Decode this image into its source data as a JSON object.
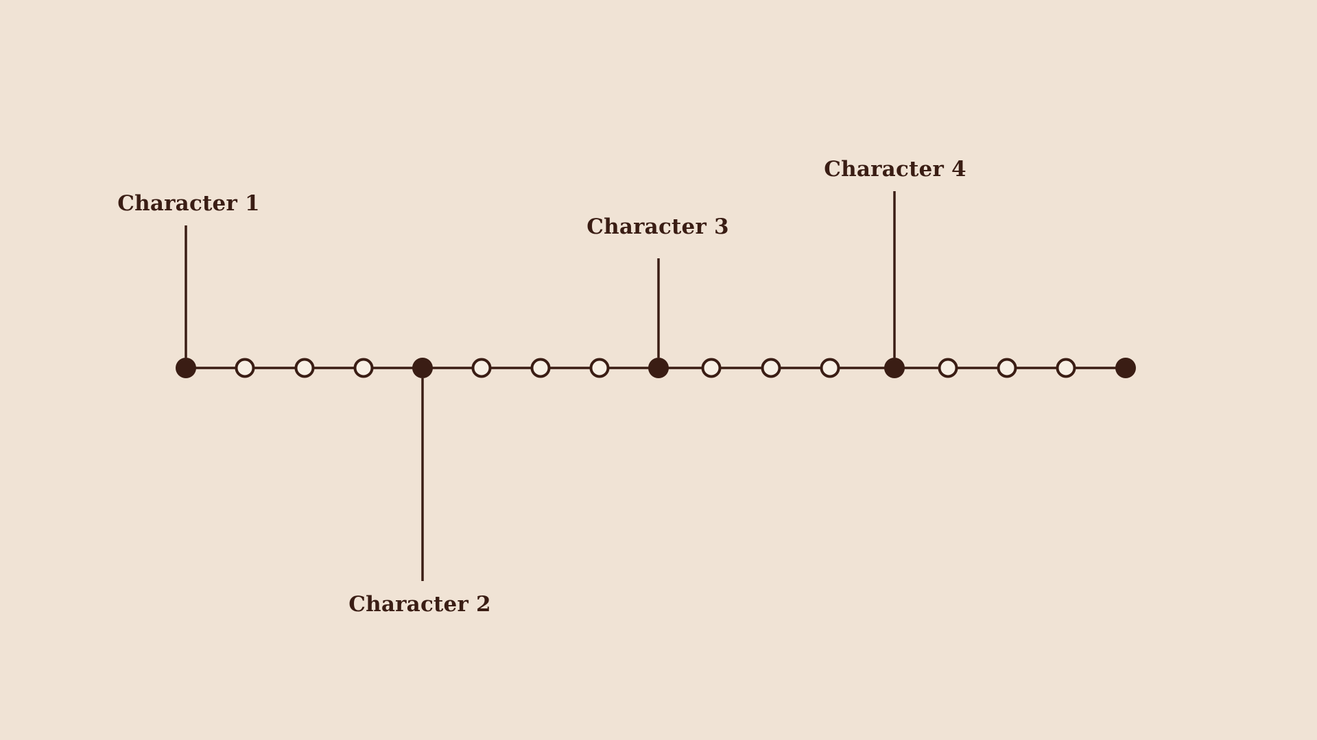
{
  "colors": {
    "background": "#f0e3d5",
    "ink": "#3a1d14",
    "hollow_fill": "#f7efe4"
  },
  "timeline": {
    "node_count": 17,
    "filled_nodes": [
      0,
      4,
      8,
      12,
      16
    ],
    "markers": [
      {
        "label": "Character 1",
        "node": 0,
        "side": "above"
      },
      {
        "label": "Character 2",
        "node": 4,
        "side": "below"
      },
      {
        "label": "Character 3",
        "node": 8,
        "side": "above"
      },
      {
        "label": "Character 4",
        "node": 12,
        "side": "above"
      }
    ]
  }
}
